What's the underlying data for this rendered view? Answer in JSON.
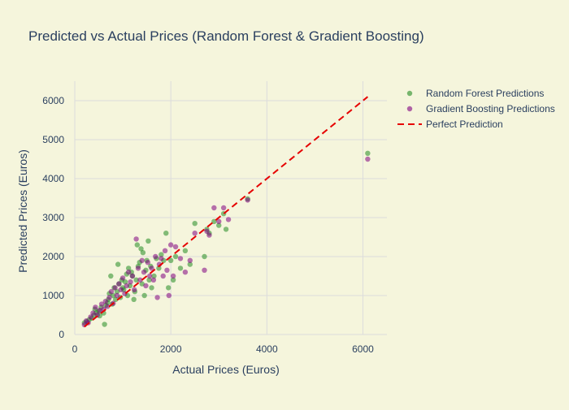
{
  "chart_data": {
    "type": "scatter",
    "title": "Predicted vs Actual Prices (Random Forest & Gradient Boosting)",
    "xlabel": "Actual Prices (Euros)",
    "ylabel": "Predicted Prices (Euros)",
    "xlim": [
      0,
      6500
    ],
    "ylim": [
      0,
      6500
    ],
    "xticks": [
      0,
      2000,
      4000,
      6000
    ],
    "xtick_labels": [
      "0",
      "2000",
      "4000",
      "6000"
    ],
    "yticks": [
      0,
      1000,
      2000,
      3000,
      4000,
      5000,
      6000
    ],
    "ytick_labels": [
      "0",
      "1000",
      "2000",
      "3000",
      "4000",
      "5000",
      "6000"
    ],
    "grid": true,
    "legend_placement": "top-right",
    "series": [
      {
        "name": "Random Forest Predictions",
        "color": "#228b22",
        "points": [
          [
            200,
            300
          ],
          [
            250,
            330
          ],
          [
            300,
            380
          ],
          [
            350,
            420
          ],
          [
            400,
            500
          ],
          [
            420,
            650
          ],
          [
            450,
            560
          ],
          [
            500,
            600
          ],
          [
            520,
            480
          ],
          [
            550,
            700
          ],
          [
            600,
            550
          ],
          [
            620,
            260
          ],
          [
            650,
            750
          ],
          [
            680,
            820
          ],
          [
            700,
            900
          ],
          [
            720,
            1050
          ],
          [
            750,
            1500
          ],
          [
            780,
            780
          ],
          [
            800,
            1000
          ],
          [
            820,
            1200
          ],
          [
            850,
            900
          ],
          [
            880,
            1100
          ],
          [
            900,
            1800
          ],
          [
            920,
            1300
          ],
          [
            950,
            950
          ],
          [
            980,
            1400
          ],
          [
            1000,
            1200
          ],
          [
            1020,
            1150
          ],
          [
            1050,
            1350
          ],
          [
            1080,
            1550
          ],
          [
            1100,
            1000
          ],
          [
            1120,
            1700
          ],
          [
            1150,
            1250
          ],
          [
            1180,
            1600
          ],
          [
            1200,
            1500
          ],
          [
            1230,
            900
          ],
          [
            1250,
            1100
          ],
          [
            1280,
            1400
          ],
          [
            1300,
            2300
          ],
          [
            1320,
            1750
          ],
          [
            1350,
            1850
          ],
          [
            1380,
            2200
          ],
          [
            1400,
            1300
          ],
          [
            1420,
            2100
          ],
          [
            1450,
            1000
          ],
          [
            1480,
            1650
          ],
          [
            1500,
            1900
          ],
          [
            1530,
            2400
          ],
          [
            1550,
            1400
          ],
          [
            1580,
            1750
          ],
          [
            1600,
            1200
          ],
          [
            1650,
            1500
          ],
          [
            1700,
            1950
          ],
          [
            1750,
            1700
          ],
          [
            1800,
            2050
          ],
          [
            1850,
            1900
          ],
          [
            1900,
            2600
          ],
          [
            1950,
            1200
          ],
          [
            2000,
            1900
          ],
          [
            2050,
            1400
          ],
          [
            2100,
            2000
          ],
          [
            2200,
            1700
          ],
          [
            2300,
            2150
          ],
          [
            2400,
            1800
          ],
          [
            2500,
            2850
          ],
          [
            2700,
            2000
          ],
          [
            2750,
            2700
          ],
          [
            2800,
            2600
          ],
          [
            2900,
            2900
          ],
          [
            3000,
            2800
          ],
          [
            3100,
            3100
          ],
          [
            3150,
            2700
          ],
          [
            3600,
            3480
          ],
          [
            6100,
            4650
          ]
        ]
      },
      {
        "name": "Gradient Boosting Predictions",
        "color": "#800080",
        "points": [
          [
            200,
            250
          ],
          [
            240,
            350
          ],
          [
            280,
            300
          ],
          [
            330,
            450
          ],
          [
            380,
            550
          ],
          [
            430,
            700
          ],
          [
            470,
            500
          ],
          [
            520,
            620
          ],
          [
            560,
            780
          ],
          [
            600,
            650
          ],
          [
            640,
            850
          ],
          [
            680,
            720
          ],
          [
            720,
            950
          ],
          [
            760,
            1100
          ],
          [
            800,
            800
          ],
          [
            840,
            1200
          ],
          [
            880,
            1000
          ],
          [
            920,
            1300
          ],
          [
            960,
            1150
          ],
          [
            1000,
            1450
          ],
          [
            1040,
            1050
          ],
          [
            1080,
            1250
          ],
          [
            1120,
            1600
          ],
          [
            1160,
            1350
          ],
          [
            1200,
            1500
          ],
          [
            1240,
            1150
          ],
          [
            1280,
            2450
          ],
          [
            1320,
            1700
          ],
          [
            1360,
            1400
          ],
          [
            1400,
            1900
          ],
          [
            1440,
            1600
          ],
          [
            1480,
            1250
          ],
          [
            1520,
            1850
          ],
          [
            1560,
            1500
          ],
          [
            1600,
            1700
          ],
          [
            1640,
            1400
          ],
          [
            1680,
            2000
          ],
          [
            1720,
            950
          ],
          [
            1760,
            1800
          ],
          [
            1800,
            1950
          ],
          [
            1840,
            1500
          ],
          [
            1880,
            2150
          ],
          [
            1920,
            1650
          ],
          [
            1960,
            1000
          ],
          [
            2000,
            2300
          ],
          [
            2050,
            1500
          ],
          [
            2100,
            2250
          ],
          [
            2200,
            1950
          ],
          [
            2300,
            1600
          ],
          [
            2400,
            1900
          ],
          [
            2500,
            2600
          ],
          [
            2700,
            1650
          ],
          [
            2750,
            2650
          ],
          [
            2800,
            2550
          ],
          [
            2900,
            3250
          ],
          [
            3000,
            2900
          ],
          [
            3100,
            3250
          ],
          [
            3200,
            2950
          ],
          [
            3600,
            3450
          ],
          [
            6100,
            4500
          ]
        ]
      }
    ],
    "reference_line": {
      "name": "Perfect Prediction",
      "color": "#e60000",
      "style": "dashed",
      "x": [
        200,
        6100
      ],
      "y": [
        200,
        6100
      ]
    }
  }
}
